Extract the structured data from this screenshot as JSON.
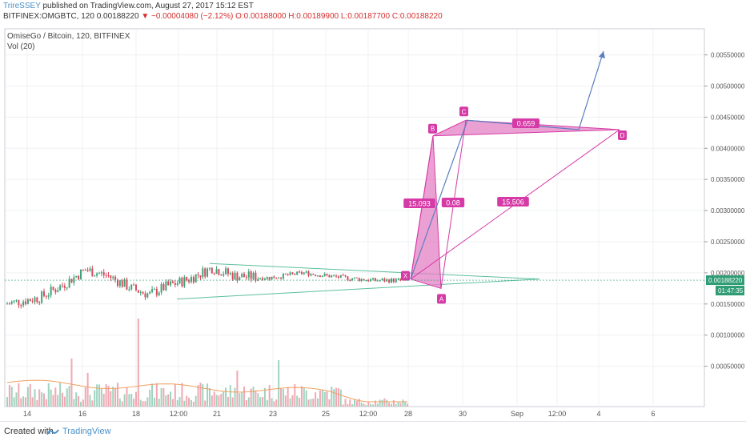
{
  "header": {
    "author": "TrireSSEY",
    "published_text": " published on TradingView.com, August 27, 2017 15:12 EST",
    "symbol_line_prefix": "BITFINEX:OMGBTC, 120  0.00188220",
    "change_arrow": "▼",
    "change_text": " −0.00004080 (−2.12%)",
    "ohlc_text": " O:0.00188000 H:0.00189900 L:0.00187700 C:0.00188220"
  },
  "chart_title": "OmiseGo / Bitcoin, 120, BITFINEX",
  "volume_label": "Vol (20)",
  "footer": {
    "created_with": "Created with",
    "brand": "TradingView"
  },
  "colors": {
    "up": "#3fa37a",
    "down": "#d94a5a",
    "pattern": "#d63aa6",
    "pattern_fill": "#e480c4",
    "triangle": "#5dbf9c",
    "arrow": "#5b7fc0",
    "price_tag": "#2e9c74"
  },
  "chart_data": {
    "type": "candlestick",
    "y_axis": {
      "min": 0,
      "max": 0.0058,
      "ticks": [
        0.0005,
        0.001,
        0.0015,
        0.002,
        0.0025,
        0.003,
        0.0035,
        0.004,
        0.0045,
        0.005,
        0.0055
      ],
      "tick_labels": [
        "0.00050000",
        "0.00100000",
        "0.00150000",
        "0.00200000",
        "0.00250000",
        "0.00300000",
        "0.00350000",
        "0.00400000",
        "0.00450000",
        "0.00500000",
        "0.00550000"
      ]
    },
    "x_axis": {
      "tick_labels": [
        "14",
        "16",
        "18",
        "12:00",
        "21",
        "23",
        "25",
        "12:00",
        "28",
        "30",
        "Sep",
        "12:00",
        "4",
        "6"
      ]
    },
    "last_price": "0.00188220",
    "countdown": "01:47:35",
    "harmonic_pattern": {
      "points": [
        {
          "label": "X",
          "date": "Aug 27",
          "price": 0.0019
        },
        {
          "label": "A",
          "date": "Aug 28",
          "price": 0.00175
        },
        {
          "label": "B",
          "date": "Aug 28",
          "price": 0.0042
        },
        {
          "label": "C",
          "date": "Aug 30",
          "price": 0.00445
        },
        {
          "label": "D",
          "date": "Sep 4",
          "price": 0.0043
        }
      ],
      "ratios": [
        "15.093",
        "0.08",
        "15.506",
        "0.659"
      ]
    },
    "triangle": {
      "upper": [
        {
          "date": "Aug 20",
          "price": 0.00215
        },
        {
          "date": "Sep 1",
          "price": 0.0019
        }
      ],
      "lower": [
        {
          "date": "Aug 18",
          "price": 0.00158
        },
        {
          "date": "Sep 1",
          "price": 0.0019
        }
      ]
    },
    "projection": [
      {
        "date": "Aug 28",
        "price": 0.0019
      },
      {
        "date": "Aug 30",
        "price": 0.00445
      },
      {
        "date": "Sep 3",
        "price": 0.0043
      },
      {
        "date": "Sep 4",
        "price": 0.00556
      }
    ]
  }
}
